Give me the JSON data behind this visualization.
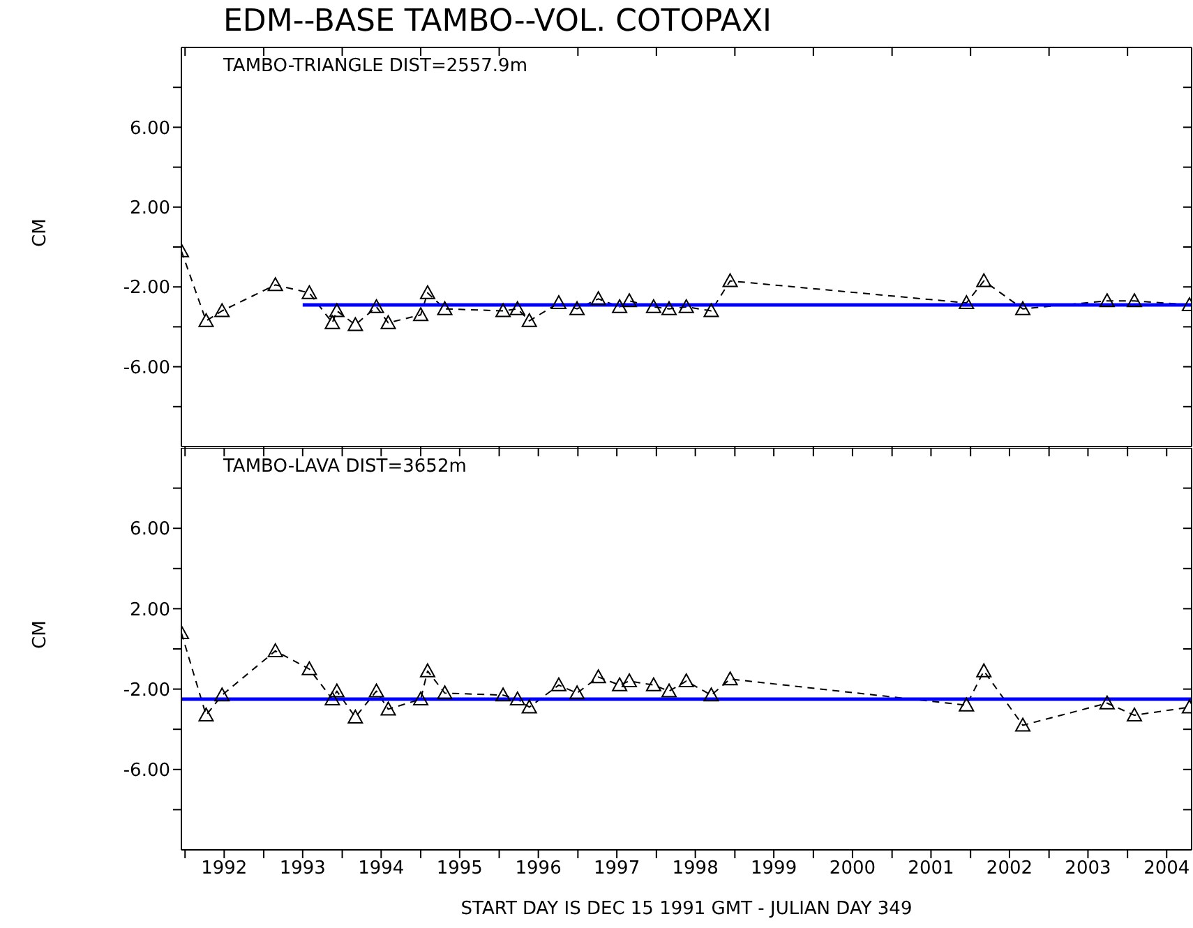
{
  "chart_data": [
    {
      "type": "line",
      "title": "EDM--BASE TAMBO--VOL. COTOPAXI",
      "ylabel": "CM",
      "annotations": [
        "TAMBO-TRIANGLE DIST=2557.9m"
      ],
      "tick_labels": "y",
      "xlim": [
        "1991-12-15",
        "2004-10-25"
      ],
      "xticks": [
        {
          "value": "1992-01-01",
          "label": null
        },
        {
          "value": "1993-01-01",
          "label": null
        },
        {
          "value": "1994-01-01",
          "label": null
        },
        {
          "value": "1995-01-01",
          "label": null
        },
        {
          "value": "1996-01-01",
          "label": null
        },
        {
          "value": "1997-01-01",
          "label": null
        },
        {
          "value": "1998-01-01",
          "label": null
        },
        {
          "value": "1999-01-01",
          "label": null
        },
        {
          "value": "2000-01-01",
          "label": null
        },
        {
          "value": "2001-01-01",
          "label": null
        },
        {
          "value": "2002-01-01",
          "label": null
        },
        {
          "value": "2003-01-01",
          "label": null
        },
        {
          "value": "2004-01-01",
          "label": null
        }
      ],
      "ylim": [
        -10,
        10
      ],
      "yticks": [
        {
          "value": 8,
          "label": null
        },
        {
          "value": 6,
          "label": "6.00"
        },
        {
          "value": 4,
          "label": null
        },
        {
          "value": 2,
          "label": "2.00"
        },
        {
          "value": 0,
          "label": null
        },
        {
          "value": -2,
          "label": "-2.00"
        },
        {
          "value": -4,
          "label": null
        },
        {
          "value": -6,
          "label": "-6.00"
        },
        {
          "value": -8,
          "label": null
        }
      ],
      "series": [
        {
          "color": "#000000",
          "line_style": "dashed",
          "marker": "triangle",
          "x": [
            "1991-12-15",
            "1992-04-08",
            "1992-06-21",
            "1993-02-24",
            "1993-08-01",
            "1993-11-16",
            "1993-12-07",
            "1994-03-03",
            "1994-06-09",
            "1994-08-03",
            "1995-01-01",
            "1995-02-02",
            "1995-04-23",
            "1996-01-19",
            "1996-03-26",
            "1996-05-20",
            "1996-10-04",
            "1996-12-28",
            "1997-04-06",
            "1997-07-14",
            "1997-08-28",
            "1997-12-19",
            "1998-03-01",
            "1998-05-20",
            "1998-09-13",
            "1998-12-10",
            "2001-12-13",
            "2002-03-04",
            "2002-09-01",
            "2003-09-28",
            "2004-02-02",
            "2004-10-15"
          ],
          "values": [
            -0.2,
            -3.7,
            -3.2,
            -1.9,
            -2.3,
            -3.8,
            -3.2,
            -3.9,
            -3.0,
            -3.8,
            -3.4,
            -2.3,
            -3.1,
            -3.2,
            -3.1,
            -3.7,
            -2.8,
            -3.1,
            -2.6,
            -3.0,
            -2.7,
            -3.0,
            -3.1,
            -3.0,
            -3.2,
            -1.7,
            -2.8,
            -1.7,
            -3.1,
            -2.7,
            -2.7,
            -2.9
          ]
        },
        {
          "color": "#0000ff",
          "line_style": "solid",
          "marker": "none",
          "x": [
            "1993-07-01",
            "2004-10-25"
          ],
          "values": [
            -2.9,
            -2.9
          ]
        }
      ]
    },
    {
      "type": "line",
      "xlabel": "START DAY IS DEC 15 1991 GMT  - JULIAN DAY 349",
      "ylabel": "CM",
      "annotations": [
        "TAMBO-LAVA DIST=3652m"
      ],
      "xlim": [
        "1991-12-15",
        "2004-10-25"
      ],
      "xticks": [
        {
          "value": "1992-01-01",
          "label": null
        },
        {
          "value": "1992-07-01",
          "label": "1992"
        },
        {
          "value": "1993-01-01",
          "label": null
        },
        {
          "value": "1993-07-01",
          "label": "1993"
        },
        {
          "value": "1994-01-01",
          "label": null
        },
        {
          "value": "1994-07-01",
          "label": "1994"
        },
        {
          "value": "1995-01-01",
          "label": null
        },
        {
          "value": "1995-07-01",
          "label": "1995"
        },
        {
          "value": "1996-01-01",
          "label": null
        },
        {
          "value": "1996-07-01",
          "label": "1996"
        },
        {
          "value": "1997-01-01",
          "label": null
        },
        {
          "value": "1997-07-01",
          "label": "1997"
        },
        {
          "value": "1998-01-01",
          "label": null
        },
        {
          "value": "1998-07-01",
          "label": "1998"
        },
        {
          "value": "1999-01-01",
          "label": null
        },
        {
          "value": "1999-07-01",
          "label": "1999"
        },
        {
          "value": "2000-01-01",
          "label": null
        },
        {
          "value": "2000-07-01",
          "label": "2000"
        },
        {
          "value": "2001-01-01",
          "label": null
        },
        {
          "value": "2001-07-01",
          "label": "2001"
        },
        {
          "value": "2002-01-01",
          "label": null
        },
        {
          "value": "2002-07-01",
          "label": "2002"
        },
        {
          "value": "2003-01-01",
          "label": null
        },
        {
          "value": "2003-07-01",
          "label": "2003"
        },
        {
          "value": "2004-01-01",
          "label": null
        },
        {
          "value": "2004-07-01",
          "label": "2004"
        }
      ],
      "ylim": [
        -10,
        10
      ],
      "yticks": [
        {
          "value": 8,
          "label": null
        },
        {
          "value": 6,
          "label": "6.00"
        },
        {
          "value": 4,
          "label": null
        },
        {
          "value": 2,
          "label": "2.00"
        },
        {
          "value": 0,
          "label": null
        },
        {
          "value": -2,
          "label": "-2.00"
        },
        {
          "value": -4,
          "label": null
        },
        {
          "value": -6,
          "label": "-6.00"
        },
        {
          "value": -8,
          "label": null
        }
      ],
      "series": [
        {
          "color": "#000000",
          "line_style": "dashed",
          "marker": "triangle",
          "x": [
            "1991-12-15",
            "1992-04-08",
            "1992-06-21",
            "1993-02-24",
            "1993-08-01",
            "1993-11-16",
            "1993-12-07",
            "1994-03-03",
            "1994-06-09",
            "1994-08-03",
            "1995-01-01",
            "1995-02-02",
            "1995-04-23",
            "1996-01-19",
            "1996-03-26",
            "1996-05-20",
            "1996-10-04",
            "1996-12-28",
            "1997-04-06",
            "1997-07-14",
            "1997-08-28",
            "1997-12-19",
            "1998-03-01",
            "1998-05-20",
            "1998-09-13",
            "1998-12-10",
            "2001-12-13",
            "2002-03-04",
            "2002-09-01",
            "2003-09-28",
            "2004-02-02",
            "2004-10-15"
          ],
          "values": [
            0.8,
            -3.3,
            -2.3,
            -0.1,
            -1.0,
            -2.5,
            -2.1,
            -3.4,
            -2.1,
            -3.0,
            -2.5,
            -1.1,
            -2.2,
            -2.3,
            -2.5,
            -2.9,
            -1.8,
            -2.2,
            -1.4,
            -1.8,
            -1.6,
            -1.8,
            -2.1,
            -1.6,
            -2.3,
            -1.5,
            -2.8,
            -1.1,
            -3.8,
            -2.7,
            -3.3,
            -2.9
          ]
        },
        {
          "color": "#0000ff",
          "line_style": "solid",
          "marker": "none",
          "x": [
            "1991-12-15",
            "2004-10-25"
          ],
          "values": [
            -2.5,
            -2.5
          ]
        }
      ]
    }
  ]
}
